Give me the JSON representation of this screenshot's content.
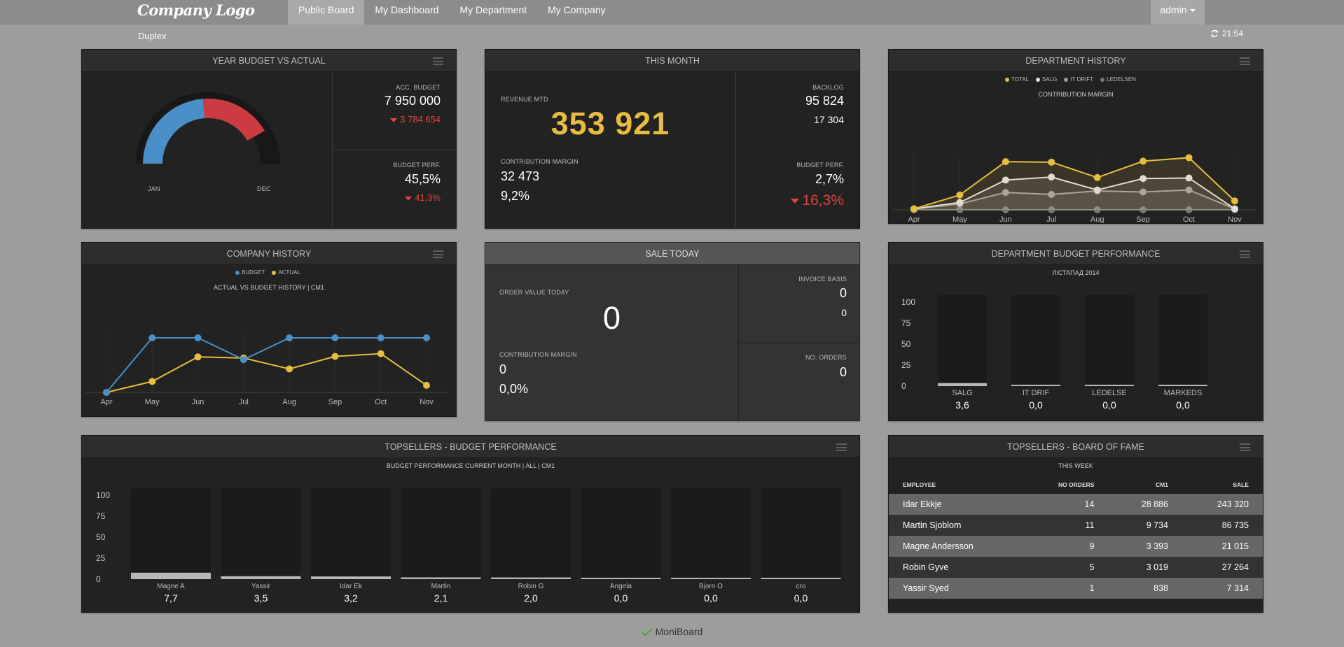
{
  "nav": {
    "logo": "Company Logo",
    "tabs": [
      {
        "label": "Public Board",
        "active": true
      },
      {
        "label": "My Dashboard",
        "active": false
      },
      {
        "label": "My Department",
        "active": false
      },
      {
        "label": "My Company",
        "active": false
      }
    ],
    "user": "admin"
  },
  "page": {
    "subtitle": "Duplex",
    "time": "21:54",
    "refresh_icon": "refresh-icon"
  },
  "year_budget": {
    "title": "YEAR BUDGET VS ACTUAL",
    "gauge_start": "JAN",
    "gauge_end": "DEC",
    "gauge_colors": {
      "blue": "#4a8fc7",
      "red": "#cc3b41"
    },
    "acc_budget_label": "ACC. BUDGET",
    "acc_budget_value": "7 950 000",
    "acc_budget_delta": "3 784 654",
    "perf_label": "BUDGET PERF.",
    "perf_value": "45,5%",
    "perf_delta": "41,3%"
  },
  "this_month": {
    "title": "THIS MONTH",
    "revenue_label": "REVENUE MTD",
    "revenue_value": "353 921",
    "cm_label": "CONTRIBUTION MARGIN",
    "cm_value": "32 473",
    "cm_percent": "9,2%",
    "backlog_label": "BACKLOG",
    "backlog_value": "95 824",
    "backlog_sub": "17 304",
    "perf_label": "BUDGET PERF.",
    "perf_value": "2,7%",
    "perf_delta": "16,3%"
  },
  "sale_today": {
    "title": "SALE TODAY",
    "order_label": "ORDER VALUE TODAY",
    "order_value": "0",
    "cm_label": "CONTRIBUTION MARGIN",
    "cm_value": "0",
    "cm_percent": "0,0%",
    "invoice_label": "INVOICE BASIS",
    "invoice_value": "0",
    "invoice_sub": "0",
    "orders_label": "NO. ORDERS",
    "orders_value": "0"
  },
  "dept_history": {
    "title": "DEPARTMENT HISTORY",
    "subtitle": "CONTRIBUTION MARGIN",
    "legend": [
      {
        "name": "TOTAL",
        "color": "#e6bd3f"
      },
      {
        "name": "SALG",
        "color": "#e0e0e0"
      },
      {
        "name": "IT DRIFT",
        "color": "#9a9a9a"
      },
      {
        "name": "LEDELSEN",
        "color": "#777777"
      }
    ]
  },
  "company_history": {
    "title": "COMPANY HISTORY",
    "subtitle": "ACTUAL VS BUDGET HISTORY | CM1",
    "legend": [
      {
        "name": "BUDGET",
        "color": "#4a8fc7"
      },
      {
        "name": "ACTUAL",
        "color": "#e6bd3f"
      }
    ]
  },
  "dept_budget": {
    "title": "DEPARTMENT BUDGET PERFORMANCE",
    "subtitle": "ЛІСТАПАД 2014"
  },
  "topsellers": {
    "title": "TOPSELLERS - BUDGET PERFORMANCE",
    "subtitle": "BUDGET PERFORMANCE CURRENT MONTH | ALL | CM1"
  },
  "fame": {
    "title": "TOPSELLERS - BOARD OF FAME",
    "subtitle": "THIS WEEK",
    "columns": [
      "EMPLOYEE",
      "NO ORDERS",
      "CM1",
      "SALE"
    ],
    "rows": [
      [
        "Idar Ekkje",
        "14",
        "28 886",
        "243 320"
      ],
      [
        "Martin Sjoblom",
        "11",
        "9 734",
        "86 735"
      ],
      [
        "Magne Andersson",
        "9",
        "3 393",
        "21 015"
      ],
      [
        "Robin Gyve",
        "5",
        "3 019",
        "27 264"
      ],
      [
        "Yassir Syed",
        "1",
        "838",
        "7 314"
      ]
    ]
  },
  "footer": {
    "brand": "MoniBoard"
  },
  "chart_data": [
    {
      "type": "line",
      "title": "CONTRIBUTION MARGIN",
      "x": [
        "Apr",
        "May",
        "Jun",
        "Jul",
        "Aug",
        "Sep",
        "Oct",
        "Nov"
      ],
      "ylim": [
        0,
        100
      ],
      "series": [
        {
          "name": "TOTAL",
          "color": "#e6bd3f",
          "values": [
            2,
            30,
            97,
            96,
            65,
            98,
            105,
            18
          ]
        },
        {
          "name": "SALG",
          "color": "#e0e0e0",
          "values": [
            2,
            15,
            60,
            66,
            40,
            63,
            64,
            2
          ]
        },
        {
          "name": "IT DRIFT",
          "color": "#9a9a9a",
          "values": [
            2,
            12,
            35,
            31,
            38,
            36,
            40,
            2
          ]
        },
        {
          "name": "LEDELSEN",
          "color": "#777777",
          "values": [
            0,
            0,
            0,
            0,
            0,
            0,
            0,
            0
          ]
        }
      ]
    },
    {
      "type": "line",
      "title": "ACTUAL VS BUDGET HISTORY | CM1",
      "x": [
        "Apr",
        "May",
        "Jun",
        "Jul",
        "Aug",
        "Sep",
        "Oct",
        "Nov"
      ],
      "ylim": [
        0,
        100
      ],
      "series": [
        {
          "name": "BUDGET",
          "color": "#4a8fc7",
          "values": [
            0,
            100,
            100,
            60,
            100,
            100,
            100,
            100
          ]
        },
        {
          "name": "ACTUAL",
          "color": "#e6bd3f",
          "values": [
            0,
            20,
            65,
            63,
            43,
            66,
            71,
            13
          ]
        }
      ]
    },
    {
      "type": "bar",
      "title": "ЛІСТАПАД 2014",
      "categories": [
        "SALG",
        "IT DRIF",
        "LEDELSE",
        "MARKEDS"
      ],
      "values": [
        3.6,
        0.0,
        0.0,
        0.0
      ],
      "value_labels": [
        "3,6",
        "0,0",
        "0,0",
        "0,0"
      ],
      "yticks": [
        "100",
        "75",
        "50",
        "25",
        "0"
      ],
      "ylim": [
        0,
        100
      ]
    },
    {
      "type": "bar",
      "title": "BUDGET PERFORMANCE CURRENT MONTH | ALL | CM1",
      "categories": [
        "Magne A",
        "Yassir",
        "Idar Ek",
        "Martin",
        "Robin G",
        "Angela",
        "Bjorn O",
        "cro"
      ],
      "values": [
        7.7,
        3.5,
        3.2,
        2.1,
        2.0,
        0.0,
        0.0,
        0.0
      ],
      "value_labels": [
        "7,7",
        "3,5",
        "3,2",
        "2,1",
        "2,0",
        "0,0",
        "0,0",
        "0,0"
      ],
      "yticks": [
        "100",
        "75",
        "50",
        "25",
        "0"
      ],
      "ylim": [
        0,
        100
      ]
    }
  ]
}
